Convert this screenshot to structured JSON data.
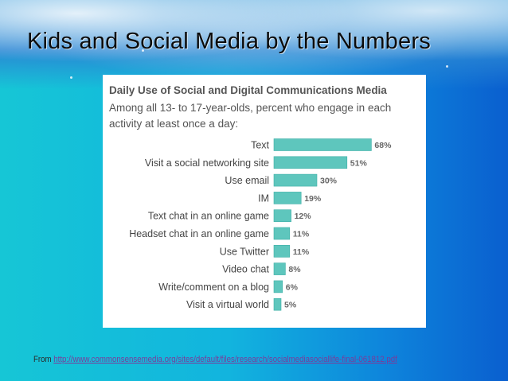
{
  "slide": {
    "title": "Kids and Social Media by the Numbers",
    "footer_prefix": "From",
    "footer_link": "http://www.commonsensemedia.org/sites/default/files/research/socialmediasociallife-final-061812.pdf"
  },
  "colors": {
    "bar": "#5ec6bd",
    "bar_edge": "#3fb0a7"
  },
  "chart_data": {
    "type": "bar",
    "orientation": "horizontal",
    "title": "Daily Use of Social and Digital Communications Media",
    "subtitle": "Among all 13- to 17-year-olds, percent who engage in each activity at least once a day:",
    "categories": [
      "Text",
      "Visit a social networking site",
      "Use email",
      "IM",
      "Text chat in an online game",
      "Headset chat in an online game",
      "Use Twitter",
      "Video chat",
      "Write/comment on a blog",
      "Visit a virtual world"
    ],
    "values": [
      68,
      51,
      30,
      19,
      12,
      11,
      11,
      8,
      6,
      5
    ],
    "value_labels": [
      "68%",
      "51%",
      "30%",
      "19%",
      "12%",
      "11%",
      "11%",
      "8%",
      "6%",
      "5%"
    ],
    "xlim": [
      0,
      100
    ],
    "grid": false,
    "legend": "none"
  }
}
